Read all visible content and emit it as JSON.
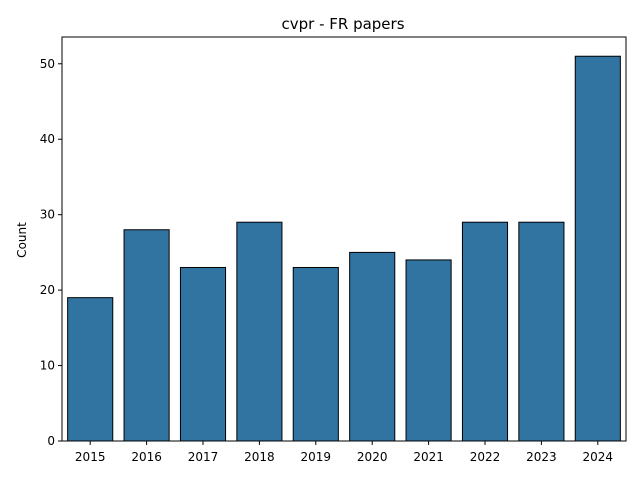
{
  "chart_data": {
    "type": "bar",
    "title": "cvpr - FR papers",
    "xlabel": "",
    "ylabel": "Count",
    "categories": [
      "2015",
      "2016",
      "2017",
      "2018",
      "2019",
      "2020",
      "2021",
      "2022",
      "2023",
      "2024"
    ],
    "values": [
      19,
      28,
      23,
      29,
      23,
      25,
      24,
      29,
      29,
      51
    ],
    "ylim": [
      0,
      53.55
    ],
    "yticks": [
      0,
      10,
      20,
      30,
      40,
      50
    ],
    "bar_color": "#3274a1",
    "edge_color": "#000000",
    "grid": false,
    "legend": "none"
  }
}
